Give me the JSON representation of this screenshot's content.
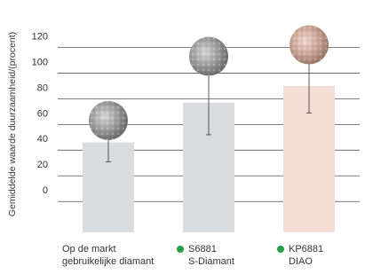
{
  "chart_data": {
    "type": "bar",
    "y_label": "Gemiddelde waarde duurzaamheid/(procent)",
    "categories": [
      [
        "Op de markt",
        "gebruikelijke diamant"
      ],
      [
        "S6881",
        "S-Diamant"
      ],
      [
        "KP6881",
        "DIAO"
      ]
    ],
    "values": [
      46,
      77,
      90
    ],
    "errors": [
      15,
      25,
      21
    ],
    "colors": [
      "#d9dde0",
      "#d9dde0",
      "#f3ddd5"
    ],
    "category_dots": [
      null,
      "#2a9d48",
      "#2a9d48"
    ],
    "ylim": [
      -24,
      130
    ],
    "yticks": [
      0,
      20,
      40,
      60,
      80,
      100,
      120
    ],
    "grid": true
  }
}
